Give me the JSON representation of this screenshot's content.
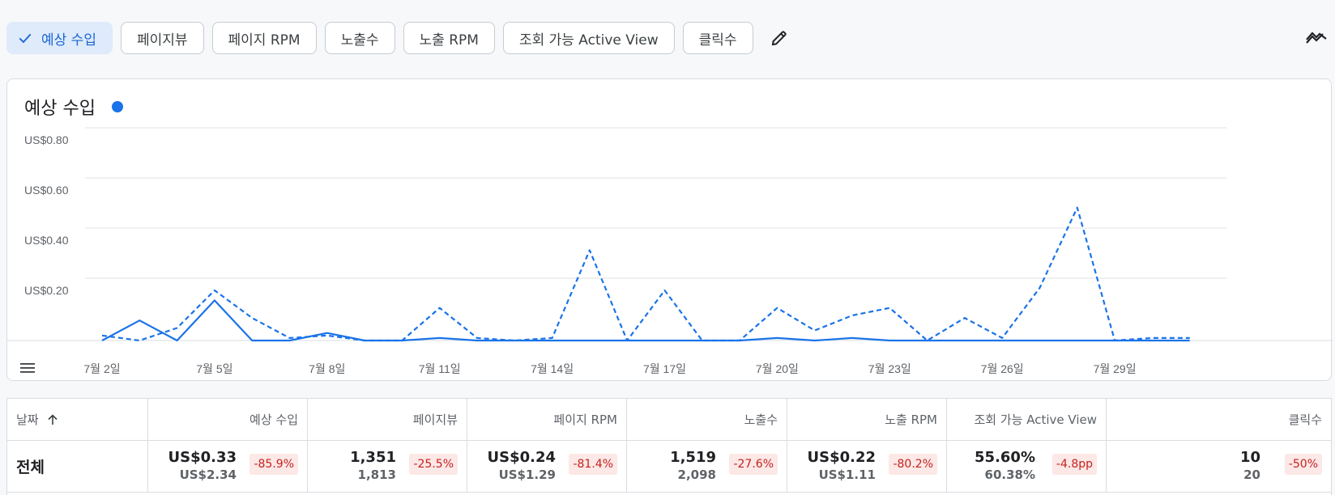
{
  "chips": [
    {
      "label": "예상 수입",
      "selected": true
    },
    {
      "label": "페이지뷰",
      "selected": false
    },
    {
      "label": "페이지 RPM",
      "selected": false
    },
    {
      "label": "노출수",
      "selected": false
    },
    {
      "label": "노출 RPM",
      "selected": false
    },
    {
      "label": "조회 가능 Active View",
      "selected": false
    },
    {
      "label": "클릭수",
      "selected": false
    }
  ],
  "icons": {
    "check": "check-icon",
    "edit": "pencil-icon",
    "trend": "trend-compare-icon",
    "menu": "table-view-icon",
    "sort": "arrow-up-icon"
  },
  "chart": {
    "title": "예상 수입",
    "legend_color": "#1a73e8"
  },
  "chart_data": {
    "type": "line",
    "y_tick_labels": [
      "US$0.20",
      "US$0.40",
      "US$0.60",
      "US$0.80"
    ],
    "y_ticks": [
      0.2,
      0.4,
      0.6,
      0.8
    ],
    "ylim": [
      0,
      0.82
    ],
    "x_tick_labels": [
      "7월 2일",
      "7월 5일",
      "7월 8일",
      "7월 11일",
      "7월 14일",
      "7월 17일",
      "7월 20일",
      "7월 23일",
      "7월 26일",
      "7월 29일"
    ],
    "x_tick_days": [
      2,
      5,
      8,
      11,
      14,
      17,
      20,
      23,
      26,
      29
    ],
    "x": [
      2,
      3,
      4,
      5,
      6,
      7,
      8,
      9,
      10,
      11,
      12,
      13,
      14,
      15,
      16,
      17,
      18,
      19,
      20,
      21,
      22,
      23,
      24,
      25,
      26,
      27,
      28,
      29,
      30,
      31
    ],
    "series": [
      {
        "style": "solid",
        "values": [
          0.0,
          0.08,
          0.0,
          0.16,
          0.0,
          0.0,
          0.03,
          0.0,
          0.0,
          0.01,
          0.0,
          0.0,
          0.0,
          0.0,
          0.0,
          0.0,
          0.0,
          0.0,
          0.01,
          0.0,
          0.01,
          0.0,
          0.0,
          0.0,
          0.0,
          0.0,
          0.0,
          0.0,
          0.0,
          0.0
        ]
      },
      {
        "style": "dashed",
        "values": [
          0.02,
          0.0,
          0.05,
          0.2,
          0.09,
          0.01,
          0.02,
          0.0,
          0.0,
          0.13,
          0.01,
          0.0,
          0.01,
          0.36,
          0.0,
          0.2,
          0.0,
          0.0,
          0.13,
          0.04,
          0.1,
          0.13,
          0.0,
          0.09,
          0.01,
          0.21,
          0.53,
          0.0,
          0.01,
          0.01
        ]
      }
    ],
    "grid": true,
    "line_color": "#1a73e8"
  },
  "table": {
    "headers": [
      "날짜",
      "예상 수입",
      "페이지뷰",
      "페이지 RPM",
      "노출수",
      "노출 RPM",
      "조회 가능 Active View",
      "클릭수"
    ],
    "total_row": {
      "label": "전체",
      "cells": [
        {
          "value": "US$0.33",
          "previous": "US$2.34",
          "change": "-85.9%"
        },
        {
          "value": "1,351",
          "previous": "1,813",
          "change": "-25.5%"
        },
        {
          "value": "US$0.24",
          "previous": "US$1.29",
          "change": "-81.4%"
        },
        {
          "value": "1,519",
          "previous": "2,098",
          "change": "-27.6%"
        },
        {
          "value": "US$0.22",
          "previous": "US$1.11",
          "change": "-80.2%"
        },
        {
          "value": "55.60%",
          "previous": "60.38%",
          "change": "-4.8pp"
        },
        {
          "value": "10",
          "previous": "20",
          "change": "-50%"
        }
      ]
    }
  }
}
